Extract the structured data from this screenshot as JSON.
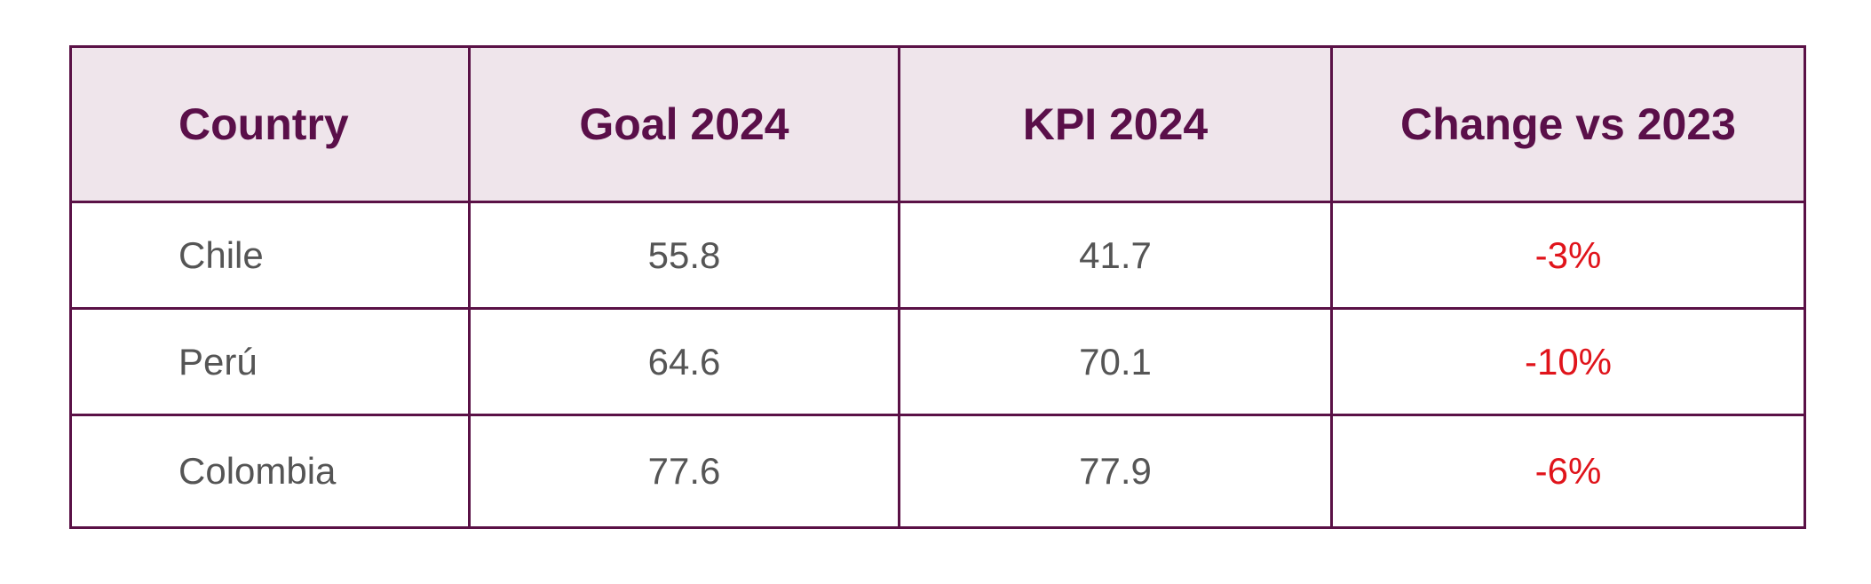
{
  "chart_data": {
    "type": "table",
    "columns": [
      "Country",
      "Goal 2024",
      "KPI 2024",
      "Change vs 2023"
    ],
    "rows": [
      {
        "country": "Chile",
        "goal_2024": "55.8",
        "kpi_2024": "41.7",
        "change_vs_2023": "-3%"
      },
      {
        "country": "Perú",
        "goal_2024": "64.6",
        "kpi_2024": "70.1",
        "change_vs_2023": "-10%"
      },
      {
        "country": "Colombia",
        "goal_2024": "77.6",
        "kpi_2024": "77.9",
        "change_vs_2023": "-6%"
      }
    ],
    "colors": {
      "header_text": "#5a0f49",
      "header_background": "#efe5eb",
      "border": "#5a1146",
      "body_text": "#555555",
      "negative_change": "#e0141b"
    }
  }
}
